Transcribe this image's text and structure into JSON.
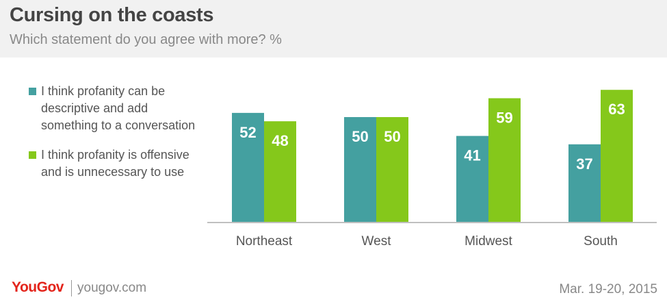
{
  "header": {
    "title": "Cursing on the coasts",
    "subtitle": "Which statement do you agree with more? %"
  },
  "colors": {
    "series1": "#44a0a0",
    "series2": "#85c81b",
    "header_bg": "#f1f1f1",
    "brand": "#e3241b"
  },
  "chart_data": {
    "type": "bar",
    "categories": [
      "Northeast",
      "West",
      "Midwest",
      "South"
    ],
    "series": [
      {
        "name": "I think profanity can be descriptive and add something to a conversation",
        "values": [
          52,
          50,
          41,
          37
        ]
      },
      {
        "name": "I think profanity is offensive and is unnecessary to use",
        "values": [
          48,
          50,
          59,
          63
        ]
      }
    ],
    "title": "Cursing on the coasts",
    "subtitle": "Which statement do you agree with more? %",
    "xlabel": "",
    "ylabel": "",
    "ylim": [
      0,
      70
    ],
    "grid": false,
    "legend_position": "left",
    "data_labels": true
  },
  "legend": {
    "items": [
      {
        "label": "I think profanity can be descriptive and add something to a conversation"
      },
      {
        "label": "I think profanity is offensive and is unnecessary to use"
      }
    ]
  },
  "footer": {
    "logo": "YouGov",
    "site": "yougov.com",
    "date": "Mar. 19-20, 2015"
  }
}
